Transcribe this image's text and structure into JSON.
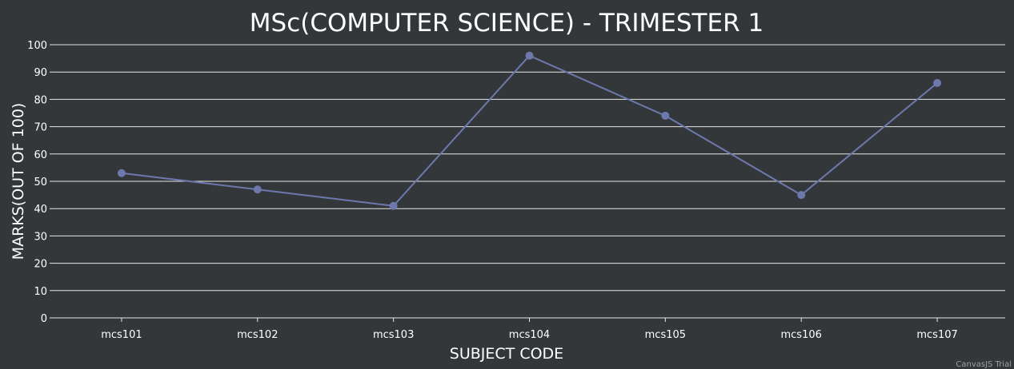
{
  "colors": {
    "background": "#33373a",
    "gridline": "#e6e6e6",
    "series_line": "#6d78ad",
    "text": "#ffffff",
    "watermark": "#9aa0a6"
  },
  "watermark": "CanvasJS Trial",
  "chart_data": {
    "type": "line",
    "title": "MSc(COMPUTER SCIENCE) - TRIMESTER 1",
    "xlabel": "SUBJECT CODE",
    "ylabel": "MARKS(OUT OF 100)",
    "categories": [
      "mcs101",
      "mcs102",
      "mcs103",
      "mcs104",
      "mcs105",
      "mcs106",
      "mcs107"
    ],
    "values": [
      53,
      47,
      41,
      96,
      74,
      45,
      86
    ],
    "ylim": [
      0,
      100
    ],
    "yticks": [
      0,
      10,
      20,
      30,
      40,
      50,
      60,
      70,
      80,
      90,
      100
    ],
    "grid": true,
    "legend": "none",
    "markers": true
  }
}
